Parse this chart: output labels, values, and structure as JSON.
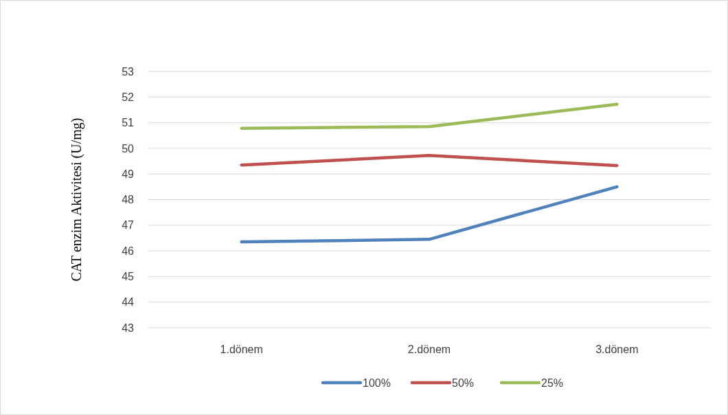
{
  "chart_data": {
    "type": "line",
    "ylabel": "CAT enzim Aktivitesi (U/mg)",
    "categories": [
      "1.dönem",
      "2.dönem",
      "3.dönem"
    ],
    "series": [
      {
        "name": "100%",
        "color": "#4f81bd",
        "values": [
          46.35,
          46.45,
          48.5
        ]
      },
      {
        "name": "50%",
        "color": "#c0504d",
        "values": [
          49.35,
          49.72,
          49.33
        ]
      },
      {
        "name": "25%",
        "color": "#9bbb59",
        "values": [
          50.78,
          50.85,
          51.72
        ]
      }
    ],
    "ylim": [
      43,
      53
    ],
    "yticks": [
      43,
      44,
      45,
      46,
      47,
      48,
      49,
      50,
      51,
      52,
      53
    ],
    "grid": "y",
    "legend": "bottom",
    "marker": "none",
    "line_style": "solid"
  }
}
